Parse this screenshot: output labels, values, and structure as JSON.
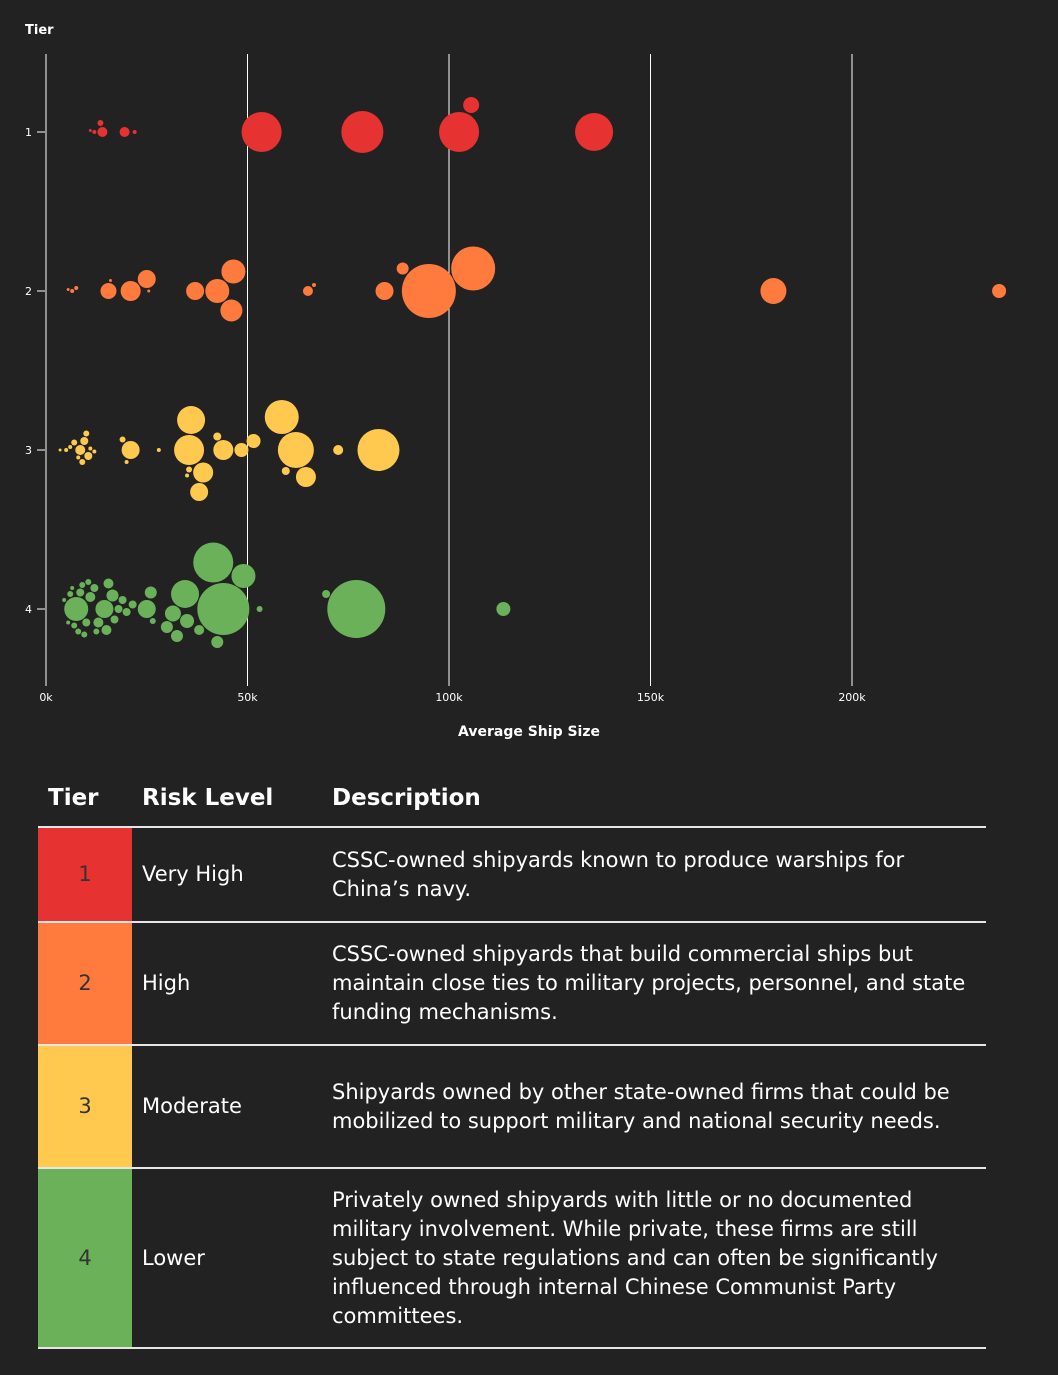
{
  "chart_data": {
    "type": "scatter",
    "subtype": "beeswarm-bubble",
    "xlabel": "Average Ship Size",
    "ylabel": "Tier",
    "xlim": [
      0,
      240000
    ],
    "x_ticks": [
      "0k",
      "50k",
      "100k",
      "150k",
      "200k"
    ],
    "x_tick_values": [
      0,
      50000,
      100000,
      150000,
      200000
    ],
    "y_ticks": [
      "1",
      "2",
      "3",
      "4"
    ],
    "grid": "vertical",
    "size_encoding": "relative bubble size",
    "series": [
      {
        "name": "1",
        "color": "#e63231",
        "points": [
          {
            "x": 11000,
            "size": 1
          },
          {
            "x": 12000,
            "size": 2
          },
          {
            "x": 13500,
            "size": 3
          },
          {
            "x": 14000,
            "size": 5
          },
          {
            "x": 19500,
            "size": 5
          },
          {
            "x": 22000,
            "size": 2
          },
          {
            "x": 53500,
            "size": 20
          },
          {
            "x": 78500,
            "size": 21
          },
          {
            "x": 102500,
            "size": 20
          },
          {
            "x": 105500,
            "size": 8
          },
          {
            "x": 136000,
            "size": 19
          }
        ]
      },
      {
        "name": "2",
        "color": "#ff7a3d",
        "points": [
          {
            "x": 5500,
            "size": 1
          },
          {
            "x": 6500,
            "size": 2
          },
          {
            "x": 7500,
            "size": 2
          },
          {
            "x": 15500,
            "size": 8
          },
          {
            "x": 16000,
            "size": 1
          },
          {
            "x": 21000,
            "size": 10
          },
          {
            "x": 25000,
            "size": 9
          },
          {
            "x": 25500,
            "size": 1
          },
          {
            "x": 37000,
            "size": 9
          },
          {
            "x": 42500,
            "size": 12
          },
          {
            "x": 46500,
            "size": 12
          },
          {
            "x": 46000,
            "size": 11
          },
          {
            "x": 65000,
            "size": 5
          },
          {
            "x": 66500,
            "size": 2
          },
          {
            "x": 84000,
            "size": 9
          },
          {
            "x": 88500,
            "size": 6
          },
          {
            "x": 95000,
            "size": 27
          },
          {
            "x": 106000,
            "size": 22
          },
          {
            "x": 180500,
            "size": 13
          },
          {
            "x": 236500,
            "size": 7
          }
        ]
      },
      {
        "name": "3",
        "color": "#ffc84e",
        "points": [
          {
            "x": 3500,
            "size": 1
          },
          {
            "x": 5000,
            "size": 2
          },
          {
            "x": 6000,
            "size": 2
          },
          {
            "x": 7000,
            "size": 3
          },
          {
            "x": 8000,
            "size": 2
          },
          {
            "x": 8500,
            "size": 5
          },
          {
            "x": 9000,
            "size": 3
          },
          {
            "x": 9500,
            "size": 4
          },
          {
            "x": 10000,
            "size": 3
          },
          {
            "x": 10500,
            "size": 4
          },
          {
            "x": 11000,
            "size": 2
          },
          {
            "x": 12000,
            "size": 2
          },
          {
            "x": 19000,
            "size": 3
          },
          {
            "x": 20000,
            "size": 2
          },
          {
            "x": 21000,
            "size": 9
          },
          {
            "x": 28000,
            "size": 2
          },
          {
            "x": 35000,
            "size": 2
          },
          {
            "x": 35500,
            "size": 3
          },
          {
            "x": 35500,
            "size": 15
          },
          {
            "x": 36000,
            "size": 14
          },
          {
            "x": 38000,
            "size": 9
          },
          {
            "x": 39000,
            "size": 10
          },
          {
            "x": 42500,
            "size": 4
          },
          {
            "x": 44000,
            "size": 10
          },
          {
            "x": 48500,
            "size": 7
          },
          {
            "x": 51500,
            "size": 7
          },
          {
            "x": 58500,
            "size": 17
          },
          {
            "x": 59500,
            "size": 4
          },
          {
            "x": 62000,
            "size": 18
          },
          {
            "x": 64500,
            "size": 10
          },
          {
            "x": 72500,
            "size": 5
          },
          {
            "x": 82500,
            "size": 21
          }
        ]
      },
      {
        "name": "4",
        "color": "#6ab15a",
        "points": [
          {
            "x": 4500,
            "size": 2
          },
          {
            "x": 5500,
            "size": 2
          },
          {
            "x": 6000,
            "size": 3
          },
          {
            "x": 6500,
            "size": 2
          },
          {
            "x": 7000,
            "size": 3
          },
          {
            "x": 7500,
            "size": 12
          },
          {
            "x": 8000,
            "size": 3
          },
          {
            "x": 8500,
            "size": 4
          },
          {
            "x": 9000,
            "size": 3
          },
          {
            "x": 9500,
            "size": 3
          },
          {
            "x": 10000,
            "size": 4
          },
          {
            "x": 10500,
            "size": 3
          },
          {
            "x": 11000,
            "size": 5
          },
          {
            "x": 12000,
            "size": 4
          },
          {
            "x": 12500,
            "size": 3
          },
          {
            "x": 13000,
            "size": 5
          },
          {
            "x": 14500,
            "size": 9
          },
          {
            "x": 15000,
            "size": 5
          },
          {
            "x": 15500,
            "size": 5
          },
          {
            "x": 16500,
            "size": 6
          },
          {
            "x": 17000,
            "size": 4
          },
          {
            "x": 18000,
            "size": 4
          },
          {
            "x": 19000,
            "size": 4
          },
          {
            "x": 20000,
            "size": 4
          },
          {
            "x": 21500,
            "size": 4
          },
          {
            "x": 25000,
            "size": 9
          },
          {
            "x": 26000,
            "size": 6
          },
          {
            "x": 26500,
            "size": 3
          },
          {
            "x": 30000,
            "size": 6
          },
          {
            "x": 31500,
            "size": 8
          },
          {
            "x": 32500,
            "size": 6
          },
          {
            "x": 34500,
            "size": 14
          },
          {
            "x": 35000,
            "size": 7
          },
          {
            "x": 38000,
            "size": 5
          },
          {
            "x": 41500,
            "size": 20
          },
          {
            "x": 42500,
            "size": 6
          },
          {
            "x": 44000,
            "size": 26
          },
          {
            "x": 49000,
            "size": 12
          },
          {
            "x": 53000,
            "size": 3
          },
          {
            "x": 69500,
            "size": 4
          },
          {
            "x": 77000,
            "size": 29
          },
          {
            "x": 113500,
            "size": 7
          }
        ]
      }
    ]
  },
  "table": {
    "headers": {
      "tier": "Tier",
      "risk": "Risk Level",
      "description": "Description"
    },
    "rows": [
      {
        "tier": "1",
        "color": "#e63231",
        "risk": "Very High",
        "description": "CSSC-owned shipyards known to produce warships for China’s navy."
      },
      {
        "tier": "2",
        "color": "#ff7a3d",
        "risk": "High",
        "description": "CSSC-owned shipyards that build commercial ships but maintain close ties to military projects, personnel, and state funding mechanisms."
      },
      {
        "tier": "3",
        "color": "#ffc84e",
        "risk": "Moderate",
        "description": "Shipyards owned by other state-owned firms that could be mobilized to support military and national security needs."
      },
      {
        "tier": "4",
        "color": "#6ab15a",
        "risk": "Lower",
        "description": "Privately owned shipyards with little or no documented military involvement. While private, these firms are still subject to state regulations and can often be significantly influenced through internal Chinese Communist Party committees."
      }
    ]
  }
}
